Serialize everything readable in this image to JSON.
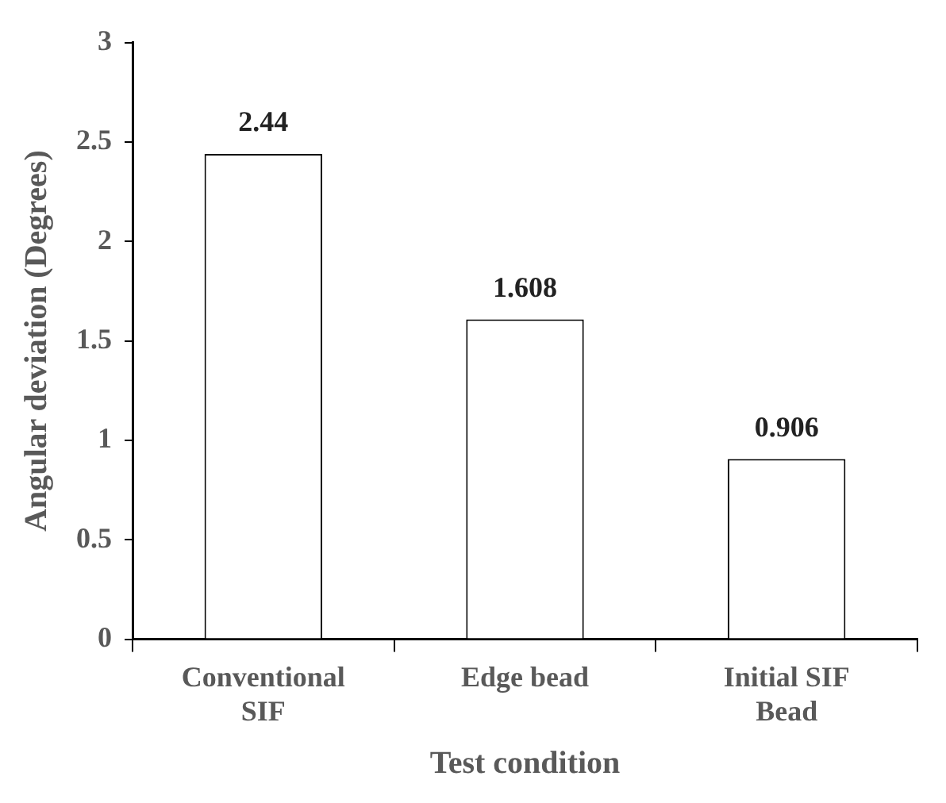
{
  "chart_data": {
    "type": "bar",
    "xlabel": "Test condition",
    "ylabel": "Angular deviation (Degrees)",
    "categories": [
      "Conventional SIF",
      "Edge bead",
      "Initial SIF Bead"
    ],
    "values": [
      2.44,
      1.608,
      0.906
    ],
    "color": "#ffffff",
    "ylim": [
      0,
      3
    ],
    "yticks": [
      0,
      0.5,
      1,
      1.5,
      2,
      2.5,
      3
    ],
    "grid": false,
    "legend": false,
    "data_labels": true
  }
}
